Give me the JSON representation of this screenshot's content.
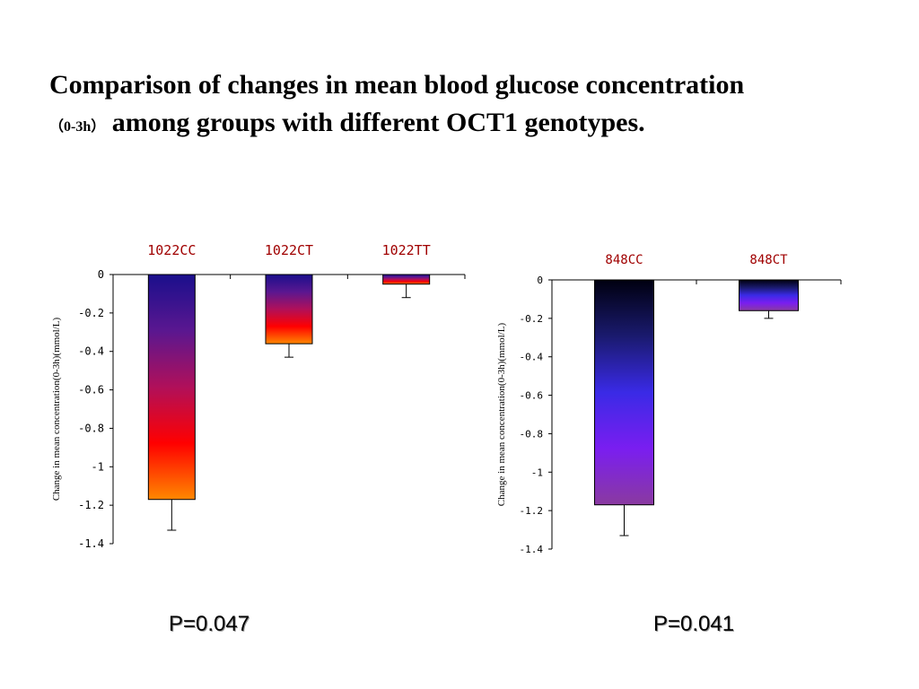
{
  "title": {
    "line1": "Comparison of changes in mean blood glucose concentration",
    "line2_small": "（0-3h）",
    "line2_rest": "among groups with different OCT1 genotypes."
  },
  "p_values": [
    "P=0.047",
    "P=0.041"
  ],
  "colors": {
    "category_label": "#a00000",
    "axis": "#000000",
    "gradient_blue_red": [
      "#1a0f8c",
      "#5a1790",
      "#b0105a",
      "#ff0000",
      "#ff8800"
    ],
    "gradient_dark_violet": [
      "#000010",
      "#1a1a6e",
      "#3a2ae6",
      "#7a1ef0",
      "#8a3aa0"
    ]
  },
  "chart_data": [
    {
      "type": "bar",
      "categories": [
        "1022CC",
        "1022CT",
        "1022TT"
      ],
      "values": [
        -1.17,
        -0.36,
        -0.05
      ],
      "error": [
        0.16,
        0.07,
        0.07
      ],
      "ylabel": "Change in mean concentration(0-3h)(mmol/L)",
      "ylim": [
        -1.4,
        0
      ],
      "yticks": [
        "0",
        "-0.2",
        "-0.4",
        "-0.6",
        "-0.8",
        "-1",
        "-1.2",
        "-1.4"
      ],
      "ytick_values": [
        0,
        -0.2,
        -0.4,
        -0.6,
        -0.8,
        -1,
        -1.2,
        -1.4
      ],
      "gradient": "gradient_blue_red",
      "grid": false
    },
    {
      "type": "bar",
      "categories": [
        "848CC",
        "848CT"
      ],
      "values": [
        -1.17,
        -0.16
      ],
      "error": [
        0.16,
        0.04
      ],
      "ylabel": "Change in mean concentration(0-3h)(mmol/L)",
      "ylim": [
        -1.4,
        0
      ],
      "yticks": [
        "0",
        "-0.2",
        "-0.4",
        "-0.6",
        "-0.8",
        "-1",
        "-1.2",
        "-1.4"
      ],
      "ytick_values": [
        0,
        -0.2,
        -0.4,
        -0.6,
        -0.8,
        -1,
        -1.2,
        -1.4
      ],
      "gradient": "gradient_dark_violet",
      "grid": false
    }
  ]
}
